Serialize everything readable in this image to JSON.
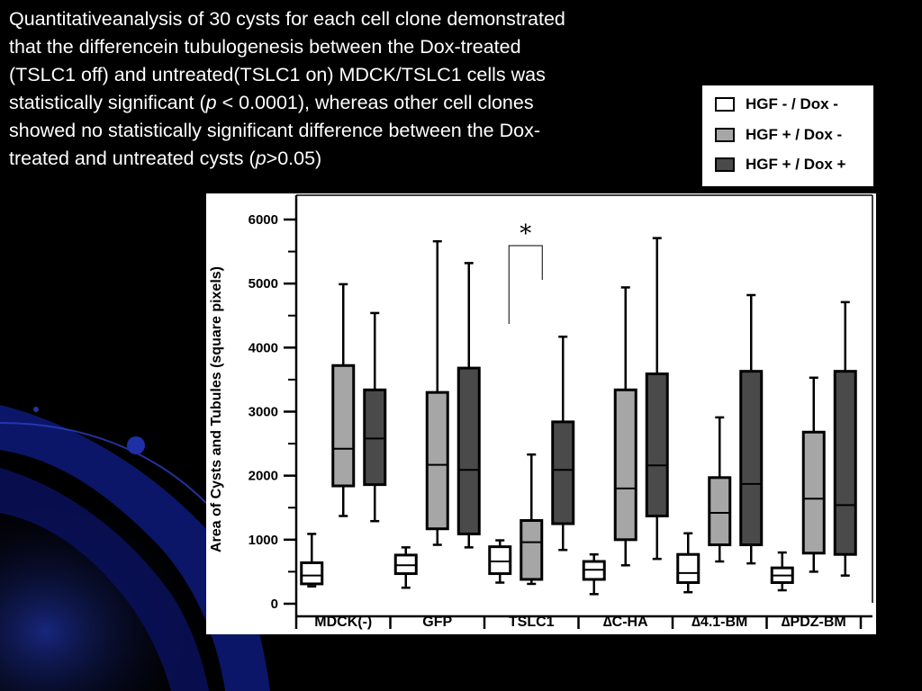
{
  "caption": {
    "line1": "Quantitativeanalysis of 30 cysts for each cell clone demonstrated",
    "line2": "that the differencein tubulogenesis between the Dox-treated",
    "line3": "(TSLC1 off) and untreated(TSLC1 on) MDCK/TSLC1 cells was",
    "line4a": "statistically significant (",
    "line4p": "p",
    "line4b": " < 0.0001), whereas other cell clones",
    "line5": "showed no statistically significant difference between the Dox-",
    "line6a": "treated and untreated cysts (",
    "line6p": "p",
    "line6b": ">0.05)"
  },
  "colors": {
    "background": "#000000",
    "caption_text": "#ffffff",
    "hgf_minus_dox_minus": "#ffffff",
    "hgf_plus_dox_minus": "#a6a6a6",
    "hgf_plus_dox_plus": "#4a4a4a"
  },
  "chart_data": {
    "type": "box",
    "ylabel": "Area of Cysts and Tubules (square pixels)",
    "xlabel": "",
    "ylim": [
      0,
      6000
    ],
    "yticks": [
      "0",
      "1000",
      "2000",
      "3000",
      "4000",
      "5000",
      "6000"
    ],
    "legend": {
      "position": "top-right, outside plot",
      "entries": [
        "HGF - / Dox -",
        "HGF + / Dox -",
        "HGF + / Dox +"
      ]
    },
    "categories": [
      "MDCK(-)",
      "GFP",
      "TSLC1",
      "∆C-HA",
      "∆4.1-BM",
      "∆PDZ-BM"
    ],
    "series": [
      {
        "name": "HGF - / Dox -",
        "color": "#ffffff",
        "boxes": [
          {
            "min": 270,
            "q1": 310,
            "median": 440,
            "q3": 640,
            "max": 1090
          },
          {
            "min": 250,
            "q1": 470,
            "median": 600,
            "q3": 760,
            "max": 880
          },
          {
            "min": 330,
            "q1": 470,
            "median": 660,
            "q3": 890,
            "max": 990
          },
          {
            "min": 150,
            "q1": 380,
            "median": 530,
            "q3": 660,
            "max": 770
          },
          {
            "min": 180,
            "q1": 330,
            "median": 480,
            "q3": 770,
            "max": 1100
          },
          {
            "min": 210,
            "q1": 330,
            "median": 440,
            "q3": 560,
            "max": 800
          }
        ]
      },
      {
        "name": "HGF + / Dox -",
        "color": "#a6a6a6",
        "boxes": [
          {
            "min": 1370,
            "q1": 1840,
            "median": 2420,
            "q3": 3720,
            "max": 4990
          },
          {
            "min": 920,
            "q1": 1170,
            "median": 2170,
            "q3": 3300,
            "max": 5660
          },
          {
            "min": 310,
            "q1": 380,
            "median": 960,
            "q3": 1300,
            "max": 2330
          },
          {
            "min": 600,
            "q1": 1000,
            "median": 1800,
            "q3": 3340,
            "max": 4940
          },
          {
            "min": 660,
            "q1": 920,
            "median": 1420,
            "q3": 1970,
            "max": 2910
          },
          {
            "min": 500,
            "q1": 790,
            "median": 1640,
            "q3": 2680,
            "max": 3530
          }
        ]
      },
      {
        "name": "HGF + / Dox +",
        "color": "#4a4a4a",
        "boxes": [
          {
            "min": 1290,
            "q1": 1860,
            "median": 2580,
            "q3": 3340,
            "max": 4540
          },
          {
            "min": 880,
            "q1": 1090,
            "median": 2090,
            "q3": 3680,
            "max": 5320
          },
          {
            "min": 840,
            "q1": 1250,
            "median": 2090,
            "q3": 2840,
            "max": 4170
          },
          {
            "min": 700,
            "q1": 1370,
            "median": 2160,
            "q3": 3590,
            "max": 5710
          },
          {
            "min": 630,
            "q1": 920,
            "median": 1870,
            "q3": 3630,
            "max": 4820
          },
          {
            "min": 440,
            "q1": 770,
            "median": 1540,
            "q3": 3630,
            "max": 4710
          }
        ]
      }
    ],
    "annotations": [
      {
        "text": "*",
        "category": "TSLC1",
        "between": [
          "HGF + / Dox -",
          "HGF + / Dox +"
        ]
      }
    ],
    "grid": false
  }
}
